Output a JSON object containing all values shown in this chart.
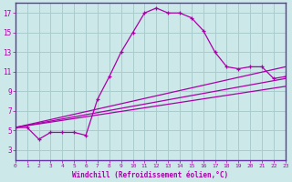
{
  "xlabel": "Windchill (Refroidissement éolien,°C)",
  "background_color": "#cce8e8",
  "grid_color": "#aacccc",
  "line_color": "#aa00aa",
  "spine_color": "#6633aa",
  "xmin": 0,
  "xmax": 23,
  "ymin": 2,
  "ymax": 18,
  "yticks": [
    3,
    5,
    7,
    9,
    11,
    13,
    15,
    17
  ],
  "xticks": [
    0,
    1,
    2,
    3,
    4,
    5,
    6,
    7,
    8,
    9,
    10,
    11,
    12,
    13,
    14,
    15,
    16,
    17,
    18,
    19,
    20,
    21,
    22,
    23
  ],
  "line1_x": [
    0,
    1,
    2,
    3,
    4,
    5,
    6,
    7,
    8,
    9,
    10,
    11,
    12,
    13,
    14,
    15,
    16,
    17,
    18,
    19,
    20,
    21,
    22,
    23
  ],
  "line1_y": [
    5.3,
    5.3,
    4.1,
    4.8,
    4.8,
    4.8,
    4.5,
    8.2,
    10.5,
    13.0,
    15.0,
    17.0,
    17.5,
    17.0,
    17.0,
    16.5,
    15.2,
    13.0,
    11.5,
    11.3,
    11.5,
    11.5,
    10.3,
    10.5
  ],
  "line2_x": [
    0,
    23
  ],
  "line2_y": [
    5.3,
    11.5
  ],
  "line3_x": [
    0,
    23
  ],
  "line3_y": [
    5.3,
    10.3
  ],
  "line4_x": [
    0,
    23
  ],
  "line4_y": [
    5.3,
    9.5
  ]
}
